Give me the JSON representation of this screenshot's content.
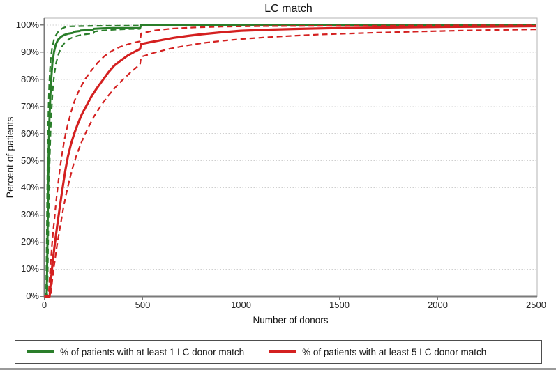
{
  "title": "LC match",
  "x_axis": {
    "label": "Number of donors",
    "tick_labels": [
      "0",
      "500",
      "1000",
      "1500",
      "2000",
      "2500"
    ],
    "tick_values": [
      0,
      500,
      1000,
      1500,
      2000,
      2500
    ]
  },
  "y_axis": {
    "label": "Percent of patients",
    "tick_labels": [
      "0%",
      "10%",
      "20%",
      "30%",
      "40%",
      "50%",
      "60%",
      "70%",
      "80%",
      "90%",
      "100%"
    ],
    "tick_values": [
      0,
      10,
      20,
      30,
      40,
      50,
      60,
      70,
      80,
      90,
      100
    ]
  },
  "legend": {
    "entries": [
      {
        "label": "% of patients with at least 1 LC donor match",
        "color": "#2a7e2a"
      },
      {
        "label": "% of patients with at least 5 LC donor match",
        "color": "#d42020"
      }
    ]
  },
  "colors": {
    "green_line": "#2a7e2a",
    "red_line": "#d42020",
    "gridline": "#cfcfcf",
    "axis": "#7a7a7a",
    "plot_border": "#b3b3b3",
    "legend_border": "#4d4d4d"
  },
  "chart_data": {
    "type": "line",
    "title": "LC match",
    "xlabel": "Number of donors",
    "ylabel": "Percent of patients",
    "xlim": [
      0,
      2505
    ],
    "ylim": [
      0,
      102.5
    ],
    "grid": "horizontal dotted lines every 10%",
    "legend_position": "boxed strip below chart",
    "series": [
      {
        "name": "% of patients with at least 1 LC donor match",
        "color": "#2a7e2a",
        "style": "solid",
        "width": 3,
        "points": [
          [
            0,
            0
          ],
          [
            12,
            0
          ],
          [
            14,
            8
          ],
          [
            16,
            20
          ],
          [
            18,
            32
          ],
          [
            20,
            44
          ],
          [
            23,
            56
          ],
          [
            26,
            65
          ],
          [
            30,
            73
          ],
          [
            35,
            80
          ],
          [
            41,
            86
          ],
          [
            49,
            90
          ],
          [
            58,
            92.8
          ],
          [
            70,
            94.6
          ],
          [
            85,
            95.7
          ],
          [
            100,
            96.3
          ],
          [
            120,
            96.8
          ],
          [
            145,
            97.1
          ],
          [
            150,
            97.3
          ],
          [
            158,
            97.6
          ],
          [
            180,
            97.8
          ],
          [
            185,
            98
          ],
          [
            220,
            98.1
          ],
          [
            248,
            98.3
          ],
          [
            252,
            98.6
          ],
          [
            300,
            98.8
          ],
          [
            350,
            98.9
          ],
          [
            487,
            98.9
          ],
          [
            492,
            100
          ],
          [
            2500,
            100
          ]
        ]
      },
      {
        "name": "at least 1 LC match - upper dashed bound",
        "color": "#2a7e2a",
        "style": "dashed",
        "width": 2.2,
        "points": [
          [
            0,
            0
          ],
          [
            9,
            0
          ],
          [
            11,
            12
          ],
          [
            13,
            26
          ],
          [
            15,
            40
          ],
          [
            17,
            52
          ],
          [
            19,
            62
          ],
          [
            22,
            71
          ],
          [
            25,
            78
          ],
          [
            29,
            84
          ],
          [
            34,
            88.5
          ],
          [
            40,
            91.8
          ],
          [
            48,
            94.2
          ],
          [
            57,
            96
          ],
          [
            68,
            97.3
          ],
          [
            80,
            98.2
          ],
          [
            95,
            98.9
          ],
          [
            110,
            99.3
          ],
          [
            130,
            99.5
          ],
          [
            170,
            99.6
          ],
          [
            260,
            99.7
          ],
          [
            487,
            99.8
          ],
          [
            492,
            100
          ],
          [
            2500,
            100
          ]
        ]
      },
      {
        "name": "at least 1 LC match - lower dashed bound",
        "color": "#2a7e2a",
        "style": "dashed",
        "width": 2.2,
        "points": [
          [
            0,
            0
          ],
          [
            15,
            0
          ],
          [
            17,
            8
          ],
          [
            19,
            18
          ],
          [
            22,
            30
          ],
          [
            25,
            42
          ],
          [
            28,
            52
          ],
          [
            32,
            61
          ],
          [
            37,
            69
          ],
          [
            43,
            76
          ],
          [
            50,
            81.5
          ],
          [
            60,
            86
          ],
          [
            72,
            89.3
          ],
          [
            87,
            91.8
          ],
          [
            105,
            93.6
          ],
          [
            128,
            94.9
          ],
          [
            155,
            95.8
          ],
          [
            190,
            96.4
          ],
          [
            230,
            96.8
          ],
          [
            250,
            97
          ],
          [
            255,
            97.6
          ],
          [
            300,
            98
          ],
          [
            360,
            98.3
          ],
          [
            430,
            98.5
          ],
          [
            487,
            98.6
          ],
          [
            492,
            100
          ],
          [
            2500,
            100
          ]
        ]
      },
      {
        "name": "% of patients with at least 5 LC donor match",
        "color": "#d42020",
        "style": "solid",
        "width": 3.2,
        "points": [
          [
            0,
            0
          ],
          [
            27,
            0
          ],
          [
            30,
            3
          ],
          [
            35,
            7
          ],
          [
            40,
            11
          ],
          [
            46,
            15
          ],
          [
            53,
            19
          ],
          [
            60,
            23
          ],
          [
            68,
            27.5
          ],
          [
            77,
            32
          ],
          [
            87,
            37
          ],
          [
            97,
            42
          ],
          [
            108,
            47
          ],
          [
            120,
            51.5
          ],
          [
            135,
            56
          ],
          [
            152,
            60
          ],
          [
            170,
            63.5
          ],
          [
            190,
            67
          ],
          [
            212,
            70
          ],
          [
            238,
            73.5
          ],
          [
            265,
            76.5
          ],
          [
            295,
            79.5
          ],
          [
            325,
            82.5
          ],
          [
            355,
            85
          ],
          [
            390,
            87
          ],
          [
            425,
            88.8
          ],
          [
            455,
            90
          ],
          [
            487,
            91.2
          ],
          [
            492,
            93
          ],
          [
            540,
            93.7
          ],
          [
            600,
            94.5
          ],
          [
            660,
            95.3
          ],
          [
            730,
            96
          ],
          [
            800,
            96.6
          ],
          [
            900,
            97.3
          ],
          [
            1000,
            97.9
          ],
          [
            1150,
            98.3
          ],
          [
            1300,
            98.6
          ],
          [
            1500,
            98.9
          ],
          [
            1750,
            99.1
          ],
          [
            2000,
            99.3
          ],
          [
            2250,
            99.4
          ],
          [
            2500,
            99.6
          ]
        ]
      },
      {
        "name": "at least 5 LC match - upper dashed bound",
        "color": "#d42020",
        "style": "dashed",
        "width": 2.2,
        "points": [
          [
            0,
            0
          ],
          [
            22,
            0
          ],
          [
            25,
            4
          ],
          [
            29,
            9
          ],
          [
            34,
            14
          ],
          [
            39,
            19
          ],
          [
            45,
            24
          ],
          [
            52,
            29
          ],
          [
            60,
            35
          ],
          [
            69,
            41
          ],
          [
            79,
            47
          ],
          [
            90,
            52.5
          ],
          [
            103,
            58
          ],
          [
            118,
            63
          ],
          [
            136,
            68
          ],
          [
            156,
            72.5
          ],
          [
            180,
            76.5
          ],
          [
            207,
            80
          ],
          [
            237,
            83
          ],
          [
            270,
            86
          ],
          [
            305,
            88.5
          ],
          [
            340,
            90.3
          ],
          [
            380,
            91.8
          ],
          [
            420,
            92.8
          ],
          [
            455,
            93.5
          ],
          [
            487,
            94
          ],
          [
            492,
            96.9
          ],
          [
            560,
            98
          ],
          [
            650,
            98.7
          ],
          [
            760,
            99.1
          ],
          [
            900,
            99.4
          ],
          [
            1100,
            99.6
          ],
          [
            1400,
            99.7
          ],
          [
            1800,
            99.8
          ],
          [
            2200,
            99.9
          ],
          [
            2500,
            99.9
          ]
        ]
      },
      {
        "name": "at least 5 LC match - lower dashed bound",
        "color": "#d42020",
        "style": "dashed",
        "width": 2.2,
        "points": [
          [
            0,
            0
          ],
          [
            32,
            0
          ],
          [
            36,
            3
          ],
          [
            42,
            7
          ],
          [
            49,
            11
          ],
          [
            57,
            15
          ],
          [
            65,
            19
          ],
          [
            75,
            23.5
          ],
          [
            86,
            28
          ],
          [
            98,
            33
          ],
          [
            112,
            38
          ],
          [
            128,
            43
          ],
          [
            146,
            48
          ],
          [
            166,
            52.5
          ],
          [
            190,
            57
          ],
          [
            218,
            61.5
          ],
          [
            250,
            66
          ],
          [
            285,
            70
          ],
          [
            320,
            73.5
          ],
          [
            358,
            76.8
          ],
          [
            398,
            79.8
          ],
          [
            438,
            82.5
          ],
          [
            470,
            84.5
          ],
          [
            487,
            85.5
          ],
          [
            492,
            88.3
          ],
          [
            560,
            89.8
          ],
          [
            640,
            91.3
          ],
          [
            720,
            92.4
          ],
          [
            810,
            93.4
          ],
          [
            920,
            94.3
          ],
          [
            1050,
            95.1
          ],
          [
            1200,
            95.8
          ],
          [
            1400,
            96.5
          ],
          [
            1650,
            97.1
          ],
          [
            1900,
            97.6
          ],
          [
            2150,
            98
          ],
          [
            2500,
            98.4
          ]
        ]
      }
    ]
  }
}
